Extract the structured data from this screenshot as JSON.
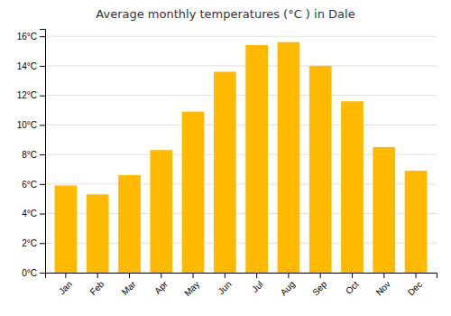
{
  "chart_data": {
    "type": "bar",
    "title": "Average monthly temperatures (°C ) in Dale",
    "categories": [
      "Jan",
      "Feb",
      "Mar",
      "Apr",
      "May",
      "Jun",
      "Jul",
      "Aug",
      "Sep",
      "Oct",
      "Nov",
      "Dec"
    ],
    "values": [
      5.9,
      5.3,
      6.6,
      8.3,
      10.9,
      13.6,
      15.4,
      15.6,
      14.0,
      11.6,
      8.5,
      6.9
    ],
    "color": "#FFBA00",
    "ylim": [
      0,
      16.5
    ],
    "yticks": [
      {
        "value": 0,
        "label": "0°C"
      },
      {
        "value": 2,
        "label": "2°C"
      },
      {
        "value": 4,
        "label": "4°C"
      },
      {
        "value": 6,
        "label": "6°C"
      },
      {
        "value": 8,
        "label": "8°C"
      },
      {
        "value": 10,
        "label": "10°C"
      },
      {
        "value": 12,
        "label": "12°C"
      },
      {
        "value": 14,
        "label": "14°C"
      },
      {
        "value": 16,
        "label": "16°C"
      }
    ],
    "grid": true
  }
}
